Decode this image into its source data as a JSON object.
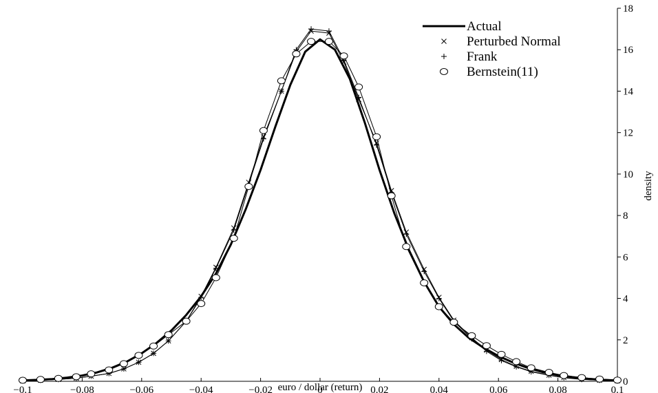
{
  "chart_data": {
    "type": "line",
    "title": "",
    "xlabel": "euro / dollar (return)",
    "ylabel": "density",
    "xlim": [
      -0.1,
      0.1
    ],
    "ylim": [
      0,
      18
    ],
    "xticks": [
      -0.1,
      -0.08,
      -0.06,
      -0.04,
      -0.02,
      0,
      0.02,
      0.04,
      0.06,
      0.08,
      0.1
    ],
    "xtick_labels": [
      "−0.1",
      "−0.08",
      "−0.06",
      "−0.04",
      "−0.02",
      "0",
      "0.02",
      "0.04",
      "0.06",
      "0.08",
      "0.1"
    ],
    "yticks": [
      0,
      2,
      4,
      6,
      8,
      10,
      12,
      14,
      16,
      18
    ],
    "ytick_labels": [
      "0",
      "2",
      "4",
      "6",
      "8",
      "10",
      "12",
      "14",
      "16",
      "18"
    ],
    "y_axis_side": "right",
    "grid": false,
    "legend_position": "top-right",
    "series": [
      {
        "name": "Actual",
        "style": "thick-line",
        "color": "#000000",
        "x": [
          -0.1,
          -0.095,
          -0.09,
          -0.085,
          -0.08,
          -0.075,
          -0.07,
          -0.065,
          -0.06,
          -0.055,
          -0.05,
          -0.045,
          -0.04,
          -0.035,
          -0.03,
          -0.025,
          -0.02,
          -0.015,
          -0.01,
          -0.005,
          0,
          0.005,
          0.01,
          0.015,
          0.02,
          0.025,
          0.03,
          0.035,
          0.04,
          0.045,
          0.05,
          0.055,
          0.06,
          0.065,
          0.07,
          0.075,
          0.08,
          0.085,
          0.09,
          0.095,
          0.1
        ],
        "y": [
          0.04,
          0.07,
          0.11,
          0.18,
          0.28,
          0.43,
          0.65,
          0.95,
          1.35,
          1.85,
          2.45,
          3.2,
          4.1,
          5.2,
          6.6,
          8.3,
          10.2,
          12.3,
          14.3,
          15.9,
          16.5,
          16.0,
          14.6,
          12.5,
          10.2,
          8.1,
          6.3,
          4.8,
          3.6,
          2.75,
          2.1,
          1.62,
          1.22,
          0.9,
          0.64,
          0.44,
          0.3,
          0.2,
          0.12,
          0.07,
          0.04
        ]
      },
      {
        "name": "Perturbed Normal",
        "marker": "x",
        "color": "#000000",
        "x": [
          -0.1,
          -0.094,
          -0.088,
          -0.082,
          -0.077,
          -0.071,
          -0.066,
          -0.061,
          -0.056,
          -0.051,
          -0.045,
          -0.04,
          -0.035,
          -0.029,
          -0.024,
          -0.019,
          -0.013,
          -0.008,
          -0.003,
          0.003,
          0.008,
          0.013,
          0.019,
          0.024,
          0.029,
          0.035,
          0.04,
          0.045,
          0.051,
          0.056,
          0.061,
          0.066,
          0.071,
          0.077,
          0.082,
          0.088,
          0.094,
          0.1
        ],
        "y": [
          0.02,
          0.05,
          0.09,
          0.15,
          0.25,
          0.38,
          0.6,
          0.92,
          1.35,
          1.95,
          2.9,
          4.1,
          5.5,
          7.4,
          9.6,
          11.8,
          14.0,
          15.9,
          16.9,
          16.8,
          15.4,
          13.6,
          11.5,
          9.2,
          7.2,
          5.4,
          4.05,
          2.95,
          2.1,
          1.5,
          1.05,
          0.72,
          0.48,
          0.3,
          0.18,
          0.1,
          0.05,
          0.02
        ]
      },
      {
        "name": "Frank",
        "marker": "+",
        "color": "#000000",
        "x": [
          -0.1,
          -0.094,
          -0.088,
          -0.082,
          -0.077,
          -0.071,
          -0.066,
          -0.061,
          -0.056,
          -0.051,
          -0.045,
          -0.04,
          -0.035,
          -0.029,
          -0.024,
          -0.019,
          -0.013,
          -0.008,
          -0.003,
          0.003,
          0.008,
          0.013,
          0.019,
          0.024,
          0.029,
          0.035,
          0.04,
          0.045,
          0.051,
          0.056,
          0.061,
          0.066,
          0.071,
          0.077,
          0.082,
          0.088,
          0.094,
          0.1
        ],
        "y": [
          0.02,
          0.05,
          0.09,
          0.15,
          0.25,
          0.38,
          0.6,
          0.92,
          1.35,
          1.95,
          2.9,
          4.05,
          5.45,
          7.3,
          9.5,
          11.7,
          14.0,
          16.0,
          17.0,
          16.9,
          15.5,
          13.7,
          11.4,
          9.1,
          7.1,
          5.3,
          4.0,
          2.9,
          2.05,
          1.45,
          1.0,
          0.7,
          0.46,
          0.29,
          0.17,
          0.09,
          0.05,
          0.02
        ]
      },
      {
        "name": "Bernstein(11)",
        "marker": "o",
        "color": "#000000",
        "x": [
          -0.1,
          -0.094,
          -0.088,
          -0.082,
          -0.077,
          -0.071,
          -0.066,
          -0.061,
          -0.056,
          -0.051,
          -0.045,
          -0.04,
          -0.035,
          -0.029,
          -0.024,
          -0.019,
          -0.013,
          -0.008,
          -0.003,
          0.003,
          0.008,
          0.013,
          0.019,
          0.024,
          0.029,
          0.035,
          0.04,
          0.045,
          0.051,
          0.056,
          0.061,
          0.066,
          0.071,
          0.077,
          0.082,
          0.088,
          0.094,
          0.1
        ],
        "y": [
          0.05,
          0.09,
          0.14,
          0.22,
          0.36,
          0.55,
          0.85,
          1.25,
          1.7,
          2.25,
          2.9,
          3.75,
          5.0,
          6.9,
          9.4,
          12.1,
          14.5,
          15.8,
          16.4,
          16.4,
          15.7,
          14.2,
          11.8,
          8.95,
          6.5,
          4.75,
          3.6,
          2.85,
          2.2,
          1.72,
          1.3,
          0.95,
          0.65,
          0.43,
          0.28,
          0.18,
          0.11,
          0.06
        ]
      }
    ]
  }
}
